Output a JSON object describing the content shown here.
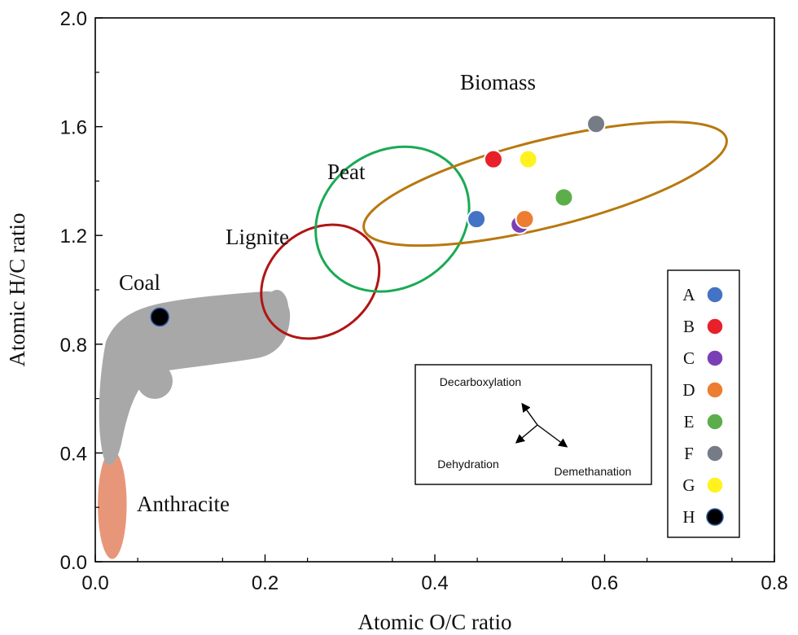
{
  "chart_data": {
    "type": "scatter",
    "title": "",
    "xlabel": "Atomic O/C ratio",
    "ylabel": "Atomic H/C ratio",
    "xlim": [
      0.0,
      0.8
    ],
    "ylim": [
      0.0,
      2.0
    ],
    "x_ticks": [
      "0.0",
      "0.2",
      "0.4",
      "0.6",
      "0.8"
    ],
    "y_ticks": [
      "0.0",
      "0.4",
      "0.8",
      "1.2",
      "1.6",
      "2.0"
    ],
    "x_tick_values": [
      0.0,
      0.2,
      0.4,
      0.6,
      0.8
    ],
    "y_tick_values": [
      0.0,
      0.4,
      0.8,
      1.2,
      1.6,
      2.0
    ],
    "regions": [
      {
        "name": "Biomass",
        "label": "Biomass",
        "color": "#B8780F",
        "center": [
          0.53,
          1.39
        ],
        "radii": [
          0.22,
          0.16
        ],
        "rotation_deg": -14
      },
      {
        "name": "Peat",
        "label": "Peat",
        "color": "#1AAA55",
        "center": [
          0.35,
          1.26
        ],
        "radii": [
          0.095,
          0.25
        ],
        "rotation_deg": -35
      },
      {
        "name": "Lignite",
        "label": "Lignite",
        "color": "#B01515",
        "center": [
          0.265,
          1.03
        ],
        "radii": [
          0.075,
          0.19
        ],
        "rotation_deg": -40
      },
      {
        "name": "Coal",
        "label": "Coal",
        "color": "#A8A8A8"
      },
      {
        "name": "Anthracite",
        "label": "Anthracite",
        "color": "#E8967A",
        "center": [
          0.02,
          0.21
        ],
        "radii": [
          0.017,
          0.2
        ],
        "rotation_deg": 0
      }
    ],
    "series": [
      {
        "name": "A",
        "x": 0.449,
        "y": 1.26,
        "color": "#4472C4"
      },
      {
        "name": "B",
        "x": 0.469,
        "y": 1.48,
        "color": "#E8202A"
      },
      {
        "name": "C",
        "x": 0.5,
        "y": 1.24,
        "color": "#7B3FB5"
      },
      {
        "name": "D",
        "x": 0.506,
        "y": 1.26,
        "color": "#ED7D31"
      },
      {
        "name": "E",
        "x": 0.552,
        "y": 1.34,
        "color": "#5CAE4A"
      },
      {
        "name": "F",
        "x": 0.59,
        "y": 1.61,
        "color": "#767C86"
      },
      {
        "name": "G",
        "x": 0.51,
        "y": 1.48,
        "color": "#FFF21E"
      },
      {
        "name": "H",
        "x": 0.076,
        "y": 0.9,
        "color": "#000000"
      }
    ],
    "inset": {
      "labels": [
        "Decarboxylation",
        "Dehydration",
        "Demethanation"
      ]
    },
    "legend_position": "right"
  }
}
